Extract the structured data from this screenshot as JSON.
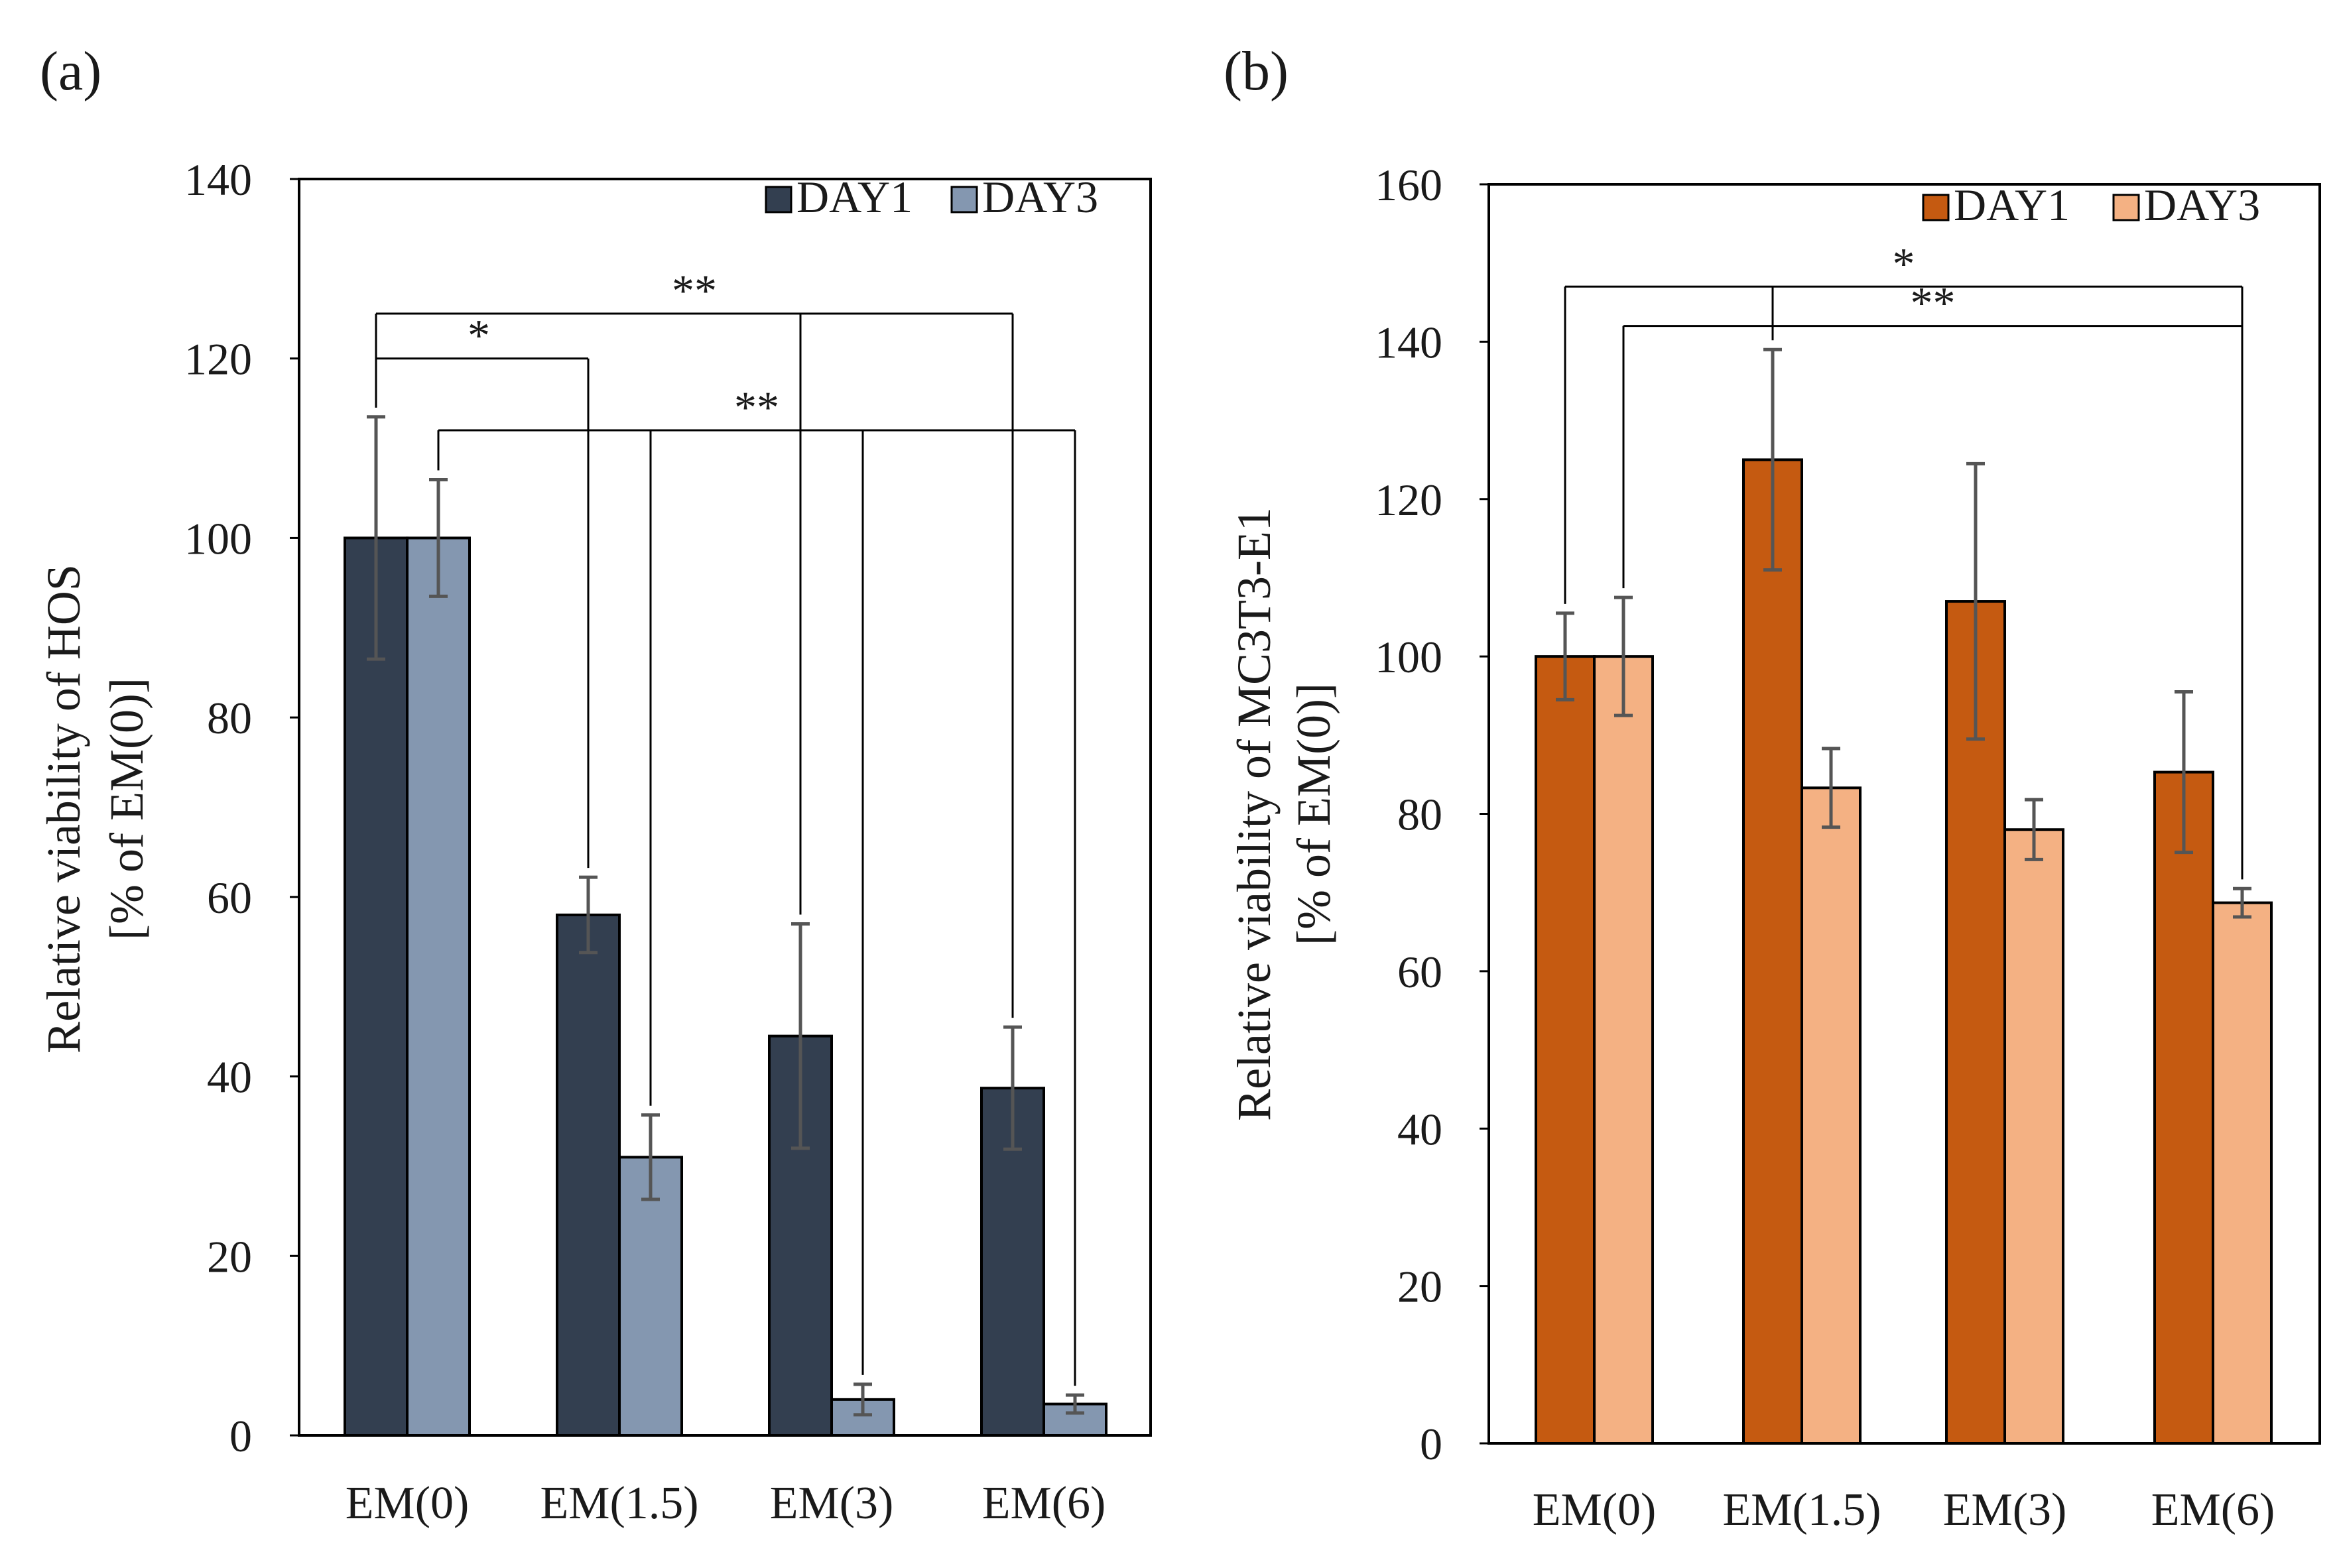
{
  "chart_data": [
    {
      "type": "bar",
      "panel_label": "(a)",
      "ylabel_line1": "Relative viability of HOS",
      "ylabel_line2": "[% of EM(0)]",
      "ylim": [
        0,
        140
      ],
      "yticks": [
        0,
        20,
        40,
        60,
        80,
        100,
        120,
        140
      ],
      "categories": [
        "EM(0)",
        "EM(1.5)",
        "EM(3)",
        "EM(6)"
      ],
      "series": [
        {
          "name": "DAY1",
          "color": "#333f50",
          "values": [
            100,
            58,
            44.5,
            38.7
          ],
          "errors": [
            13.5,
            4.2,
            12.5,
            6.8
          ]
        },
        {
          "name": "DAY3",
          "color": "#8497b0",
          "values": [
            100,
            31,
            4,
            3.5
          ],
          "errors": [
            6.5,
            4.7,
            1.7,
            1.0
          ]
        }
      ],
      "legend_position": "top-right",
      "significance": [
        {
          "label": "**",
          "from_series": 0,
          "from_cat": 0,
          "to_series": 0,
          "to_cats": [
            2,
            3
          ],
          "y": 125
        },
        {
          "label": "*",
          "from_series": 0,
          "from_cat": 0,
          "to_series": 0,
          "to_cats": [
            1
          ],
          "y": 120
        },
        {
          "label": "**",
          "from_series": 1,
          "from_cat": 0,
          "to_series": 1,
          "to_cats": [
            1,
            2,
            3
          ],
          "y": 112
        }
      ]
    },
    {
      "type": "bar",
      "panel_label": "(b)",
      "ylabel_line1": "Relative viability of MC3T3-E1",
      "ylabel_line2": "[% of EM(0)]",
      "ylim": [
        0,
        160
      ],
      "yticks": [
        0,
        20,
        40,
        60,
        80,
        100,
        120,
        140,
        160
      ],
      "categories": [
        "EM(0)",
        "EM(1.5)",
        "EM(3)",
        "EM(6)"
      ],
      "series": [
        {
          "name": "DAY1",
          "color": "#c55a11",
          "values": [
            100,
            125,
            107,
            85.3
          ],
          "errors": [
            5.5,
            14,
            17.5,
            10.2
          ]
        },
        {
          "name": "DAY3",
          "color": "#f4b183",
          "values": [
            100,
            83.3,
            78,
            68.7
          ],
          "errors": [
            7.5,
            5,
            3.8,
            1.8
          ]
        }
      ],
      "legend_position": "top-right",
      "significance": [
        {
          "label": "*",
          "from_series": 0,
          "from_cat": 0,
          "to_series": 1,
          "to_cats": [
            3
          ],
          "extra_drop": {
            "series": 0,
            "cat": 1
          },
          "y": 147
        },
        {
          "label": "**",
          "from_series": 1,
          "from_cat": 0,
          "to_series": 1,
          "to_cats": [
            3
          ],
          "y": 142
        }
      ]
    }
  ]
}
